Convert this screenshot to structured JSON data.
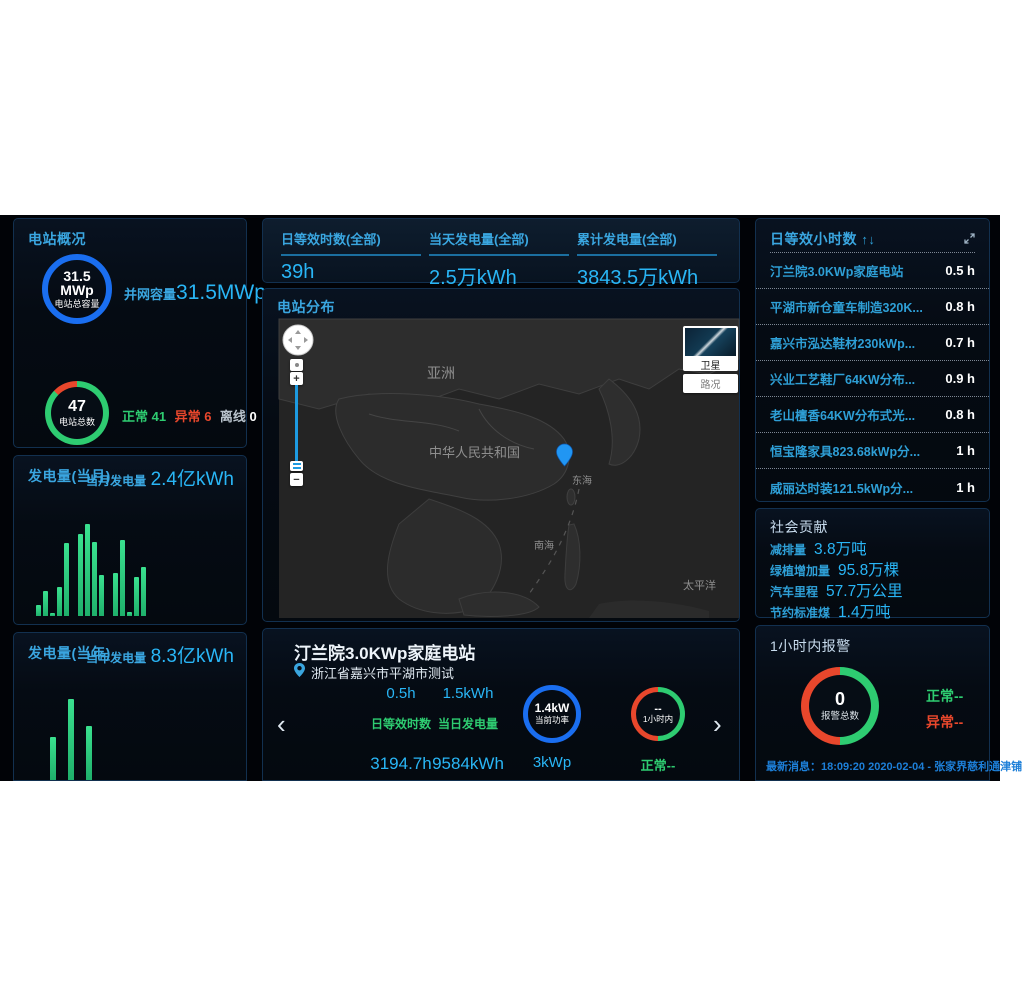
{
  "theme": {
    "accent": "#3aa6e0",
    "value_blue": "#29b6f6",
    "green": "#2ecc71",
    "red": "#e8472c",
    "bar_green": "#2bd385",
    "ring_blue": "#1a6ef0",
    "pin_blue": "#2196f3"
  },
  "overview": {
    "title": "电站概况",
    "capacity": {
      "center_line1": "31.5",
      "center_line2": "MWp",
      "caption": "电站总容量",
      "side_label": "并网容量",
      "side_value": "31.5MWp"
    },
    "stations": {
      "count": "47",
      "caption": "电站总数",
      "legend": [
        {
          "label": "正常",
          "value": "41"
        },
        {
          "label": "异常",
          "value": "6"
        },
        {
          "label": "离线",
          "value": "0"
        }
      ]
    }
  },
  "stats": [
    {
      "label": "日等效时数(全部)",
      "value": "39h"
    },
    {
      "label": "当天发电量(全部)",
      "value": "2.5万kWh"
    },
    {
      "label": "累计发电量(全部)",
      "value": "3843.5万kWh"
    }
  ],
  "map": {
    "title": "电站分布",
    "labels": {
      "asia": "亚洲",
      "china": "中华人民共和国",
      "east_sea": "东海",
      "south_sea": "南海",
      "pacific": "太平洋"
    },
    "controls": {
      "satellite": "卫星",
      "traffic": "路况",
      "zoom_in": "+",
      "zoom_out": "−"
    }
  },
  "chart_data": [
    {
      "type": "bar",
      "title": "发电量(当月)",
      "side_label": "当月发电量",
      "side_value": "2.4亿kWh",
      "values": [
        12,
        27,
        3,
        31,
        79,
        0,
        89,
        100,
        80,
        45,
        0,
        47,
        83,
        4,
        42,
        53
      ]
    },
    {
      "type": "bar",
      "title": "发电量(当年)",
      "side_label": "当年发电量",
      "side_value": "8.3亿kWh",
      "values": [
        53,
        100,
        67
      ]
    }
  ],
  "hours": {
    "title": "日等效小时数",
    "sort_icon": "↑↓",
    "items": [
      {
        "name": "汀兰院3.0KWp家庭电站",
        "value": "0.5 h"
      },
      {
        "name": "平湖市新仓童车制造320K...",
        "value": "0.8 h"
      },
      {
        "name": "嘉兴市泓达鞋材230kWp...",
        "value": "0.7 h"
      },
      {
        "name": "兴业工艺鞋厂64KW分布...",
        "value": "0.9 h"
      },
      {
        "name": "老山檀香64KW分布式光...",
        "value": "0.8 h"
      },
      {
        "name": "恒宝隆家具823.68kWp分...",
        "value": "1 h"
      },
      {
        "name": "威丽达时装121.5kWp分...",
        "value": "1 h"
      }
    ]
  },
  "social": {
    "title": "社会贡献",
    "rows": [
      {
        "label": "减排量",
        "value": "3.8万吨"
      },
      {
        "label": "绿植增加量",
        "value": "95.8万棵"
      },
      {
        "label": "汽车里程",
        "value": "57.7万公里"
      },
      {
        "label": "节约标准煤",
        "value": "1.4万吨"
      }
    ]
  },
  "alarm": {
    "title": "1小时内报警",
    "total": "0",
    "total_label": "报警总数",
    "normal": "正常--",
    "abnormal": "异常--",
    "latest": "最新消息：18:09:20 2020-02-04 - 张家界慈利通津铺"
  },
  "detail": {
    "title": "汀兰院3.0KWp家庭电站",
    "location": "浙江省嘉兴市平湖市测试",
    "prev": "‹",
    "next": "›",
    "metrics": [
      {
        "top": "0.5h",
        "label": "日等效时数",
        "bottom": "3194.7h"
      },
      {
        "top": "1.5kWh",
        "label": "当日发电量",
        "bottom": "9584kWh"
      }
    ],
    "power": {
      "center": "1.4kW",
      "label": "当前功率",
      "below": "3kWp"
    },
    "status": {
      "center": "--",
      "label": "1小时内",
      "below": "正常--"
    }
  }
}
